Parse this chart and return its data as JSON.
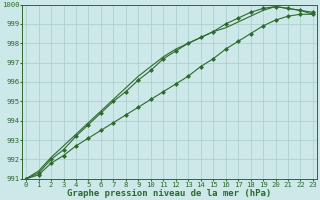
{
  "title": "Graphe pression niveau de la mer (hPa)",
  "ylim": [
    991,
    1000
  ],
  "yticks": [
    991,
    992,
    993,
    994,
    995,
    996,
    997,
    998,
    999,
    1000
  ],
  "xticks": [
    0,
    1,
    2,
    3,
    4,
    5,
    6,
    7,
    8,
    9,
    10,
    11,
    12,
    13,
    14,
    15,
    16,
    17,
    18,
    19,
    20,
    21,
    22,
    23
  ],
  "background_color": "#cce8e8",
  "grid_color": "#aacccc",
  "line_color": "#2d6a2d",
  "line1_y": [
    991.0,
    991.2,
    991.8,
    992.2,
    992.7,
    993.1,
    993.5,
    993.9,
    994.3,
    994.7,
    995.1,
    995.5,
    995.9,
    996.3,
    996.8,
    997.2,
    997.7,
    998.1,
    998.5,
    998.9,
    999.2,
    999.4,
    999.5,
    999.5
  ],
  "line2_y": [
    991.0,
    991.3,
    992.0,
    992.5,
    993.2,
    993.8,
    994.4,
    995.0,
    995.5,
    996.1,
    996.6,
    997.2,
    997.6,
    998.0,
    998.3,
    998.6,
    999.0,
    999.3,
    999.6,
    999.8,
    999.9,
    999.8,
    999.7,
    999.6
  ],
  "line3_y": [
    991.0,
    991.4,
    992.1,
    992.7,
    993.3,
    993.9,
    994.5,
    995.1,
    995.7,
    996.3,
    996.8,
    997.3,
    997.7,
    998.0,
    998.3,
    998.6,
    998.8,
    999.1,
    999.4,
    999.7,
    999.9,
    999.8,
    999.7,
    999.5
  ],
  "title_fontsize": 6.5,
  "tick_fontsize": 5.2,
  "marker": "D",
  "marker_size": 2.0,
  "line_width": 0.8
}
